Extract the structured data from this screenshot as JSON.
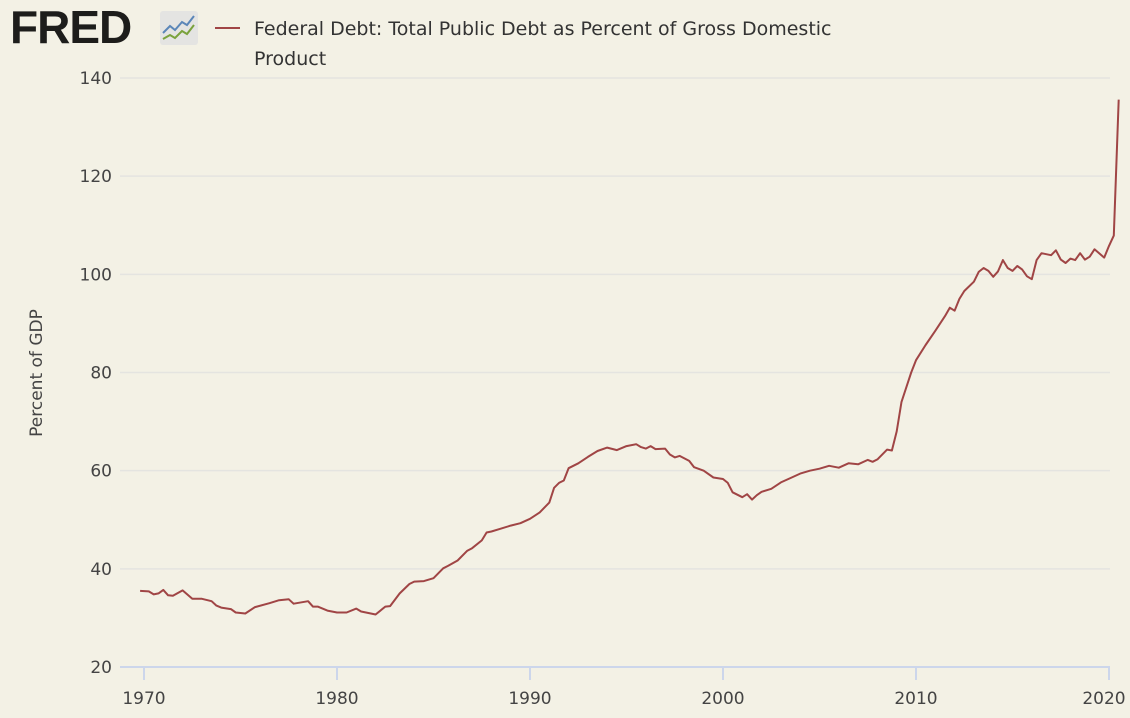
{
  "logo": {
    "text": "FRED"
  },
  "chart_data": {
    "type": "line",
    "title": "Federal Debt: Total Public Debt as Percent of Gross Domestic Product",
    "xlabel": "",
    "ylabel": "Percent of GDP",
    "xlim": [
      1970,
      2020.6
    ],
    "ylim": [
      20,
      140
    ],
    "yticks": [
      20,
      40,
      60,
      80,
      100,
      120,
      140
    ],
    "xticks": [
      1970,
      1980,
      1990,
      2000,
      2010,
      2020
    ],
    "grid": true,
    "legend": "top",
    "color": "#a04545",
    "series": [
      {
        "name": "Federal Debt: Total Public Debt as Percent of Gross Domestic Product",
        "x": [
          1969.8,
          1970.25,
          1970.5,
          1970.75,
          1971,
          1971.25,
          1971.5,
          1972,
          1972.5,
          1973,
          1973.5,
          1973.75,
          1974,
          1974.5,
          1974.75,
          1975.25,
          1975.75,
          1976.5,
          1977,
          1977.5,
          1977.75,
          1978.5,
          1978.75,
          1979,
          1979.5,
          1980,
          1980.5,
          1981,
          1981.25,
          1981.75,
          1982,
          1982.5,
          1982.75,
          1983.25,
          1983.75,
          1984,
          1984.5,
          1985,
          1985.5,
          1985.75,
          1986.25,
          1986.75,
          1987,
          1987.5,
          1987.75,
          1988,
          1988.5,
          1989,
          1989.5,
          1990,
          1990.5,
          1991,
          1991.25,
          1991.5,
          1991.75,
          1992,
          1992.5,
          1993,
          1993.5,
          1994,
          1994.5,
          1995,
          1995.5,
          1995.75,
          1996,
          1996.25,
          1996.5,
          1997,
          1997.25,
          1997.5,
          1997.75,
          1998.25,
          1998.5,
          1999,
          1999.5,
          2000,
          2000.25,
          2000.5,
          2001,
          2001.25,
          2001.5,
          2001.75,
          2002,
          2002.5,
          2003,
          2003.5,
          2004,
          2004.5,
          2005,
          2005.5,
          2006,
          2006.5,
          2007,
          2007.5,
          2007.75,
          2008,
          2008.5,
          2008.75,
          2009,
          2009.25,
          2009.75,
          2010,
          2010.5,
          2011,
          2011.5,
          2011.75,
          2012,
          2012.25,
          2012.5,
          2013,
          2013.25,
          2013.5,
          2013.75,
          2014,
          2014.25,
          2014.5,
          2014.75,
          2015,
          2015.25,
          2015.5,
          2015.75,
          2016,
          2016.25,
          2016.5,
          2017,
          2017.25,
          2017.5,
          2017.75,
          2018,
          2018.25,
          2018.5,
          2018.75,
          2019,
          2019.25,
          2019.75,
          2020,
          2020.25,
          2020.5
        ],
        "values": [
          35.5,
          35.4,
          34.8,
          35.0,
          35.7,
          34.6,
          34.5,
          35.6,
          33.9,
          33.9,
          33.4,
          32.5,
          32.1,
          31.8,
          31.1,
          30.9,
          32.2,
          33.0,
          33.6,
          33.8,
          32.9,
          33.4,
          32.3,
          32.3,
          31.5,
          31.1,
          31.1,
          31.9,
          31.3,
          30.9,
          30.7,
          32.3,
          32.4,
          35.0,
          36.9,
          37.4,
          37.5,
          38.1,
          40.1,
          40.6,
          41.7,
          43.7,
          44.2,
          45.8,
          47.4,
          47.6,
          48.2,
          48.8,
          49.3,
          50.2,
          51.5,
          53.5,
          56.5,
          57.5,
          58.0,
          60.5,
          61.5,
          62.8,
          64.0,
          64.7,
          64.2,
          65.0,
          65.4,
          64.8,
          64.5,
          65.0,
          64.4,
          64.5,
          63.3,
          62.7,
          63.0,
          62.0,
          60.7,
          60.0,
          58.6,
          58.3,
          57.5,
          55.6,
          54.6,
          55.2,
          54.1,
          55.0,
          55.7,
          56.3,
          57.6,
          58.5,
          59.4,
          60.0,
          60.4,
          61.0,
          60.6,
          61.5,
          61.3,
          62.2,
          61.8,
          62.3,
          64.3,
          64.1,
          68.0,
          74.0,
          80.0,
          82.5,
          85.6,
          88.5,
          91.5,
          93.2,
          92.6,
          95.0,
          96.6,
          98.5,
          100.5,
          101.3,
          100.7,
          99.5,
          100.6,
          102.9,
          101.3,
          100.7,
          101.7,
          101.0,
          99.6,
          99.0,
          102.9,
          104.3,
          103.9,
          104.9,
          103.0,
          102.3,
          103.2,
          102.9,
          104.3,
          103.0,
          103.6,
          105.1,
          103.4,
          105.8,
          107.9,
          135.6
        ]
      }
    ]
  }
}
